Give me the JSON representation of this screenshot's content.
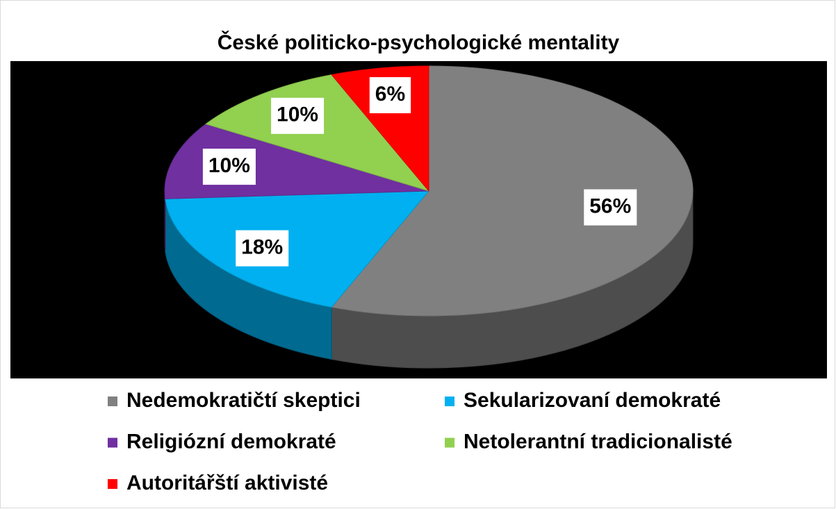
{
  "chart_data": {
    "type": "pie3d",
    "title": "České politicko-psychologické mentality",
    "categories": [
      "Nedemokratičtí skeptici",
      "Sekularizovaní demokraté",
      "Religiózní demokraté",
      "Netolerantní tradicionalisté",
      "Autoritářští aktivisté"
    ],
    "values": [
      56,
      18,
      10,
      10,
      6
    ],
    "value_labels": [
      "56%",
      "18%",
      "10%",
      "10%",
      "6%"
    ],
    "colors": [
      "#808080",
      "#00b0f0",
      "#7030a0",
      "#92d050",
      "#ff0000"
    ],
    "legend": "bottom"
  }
}
